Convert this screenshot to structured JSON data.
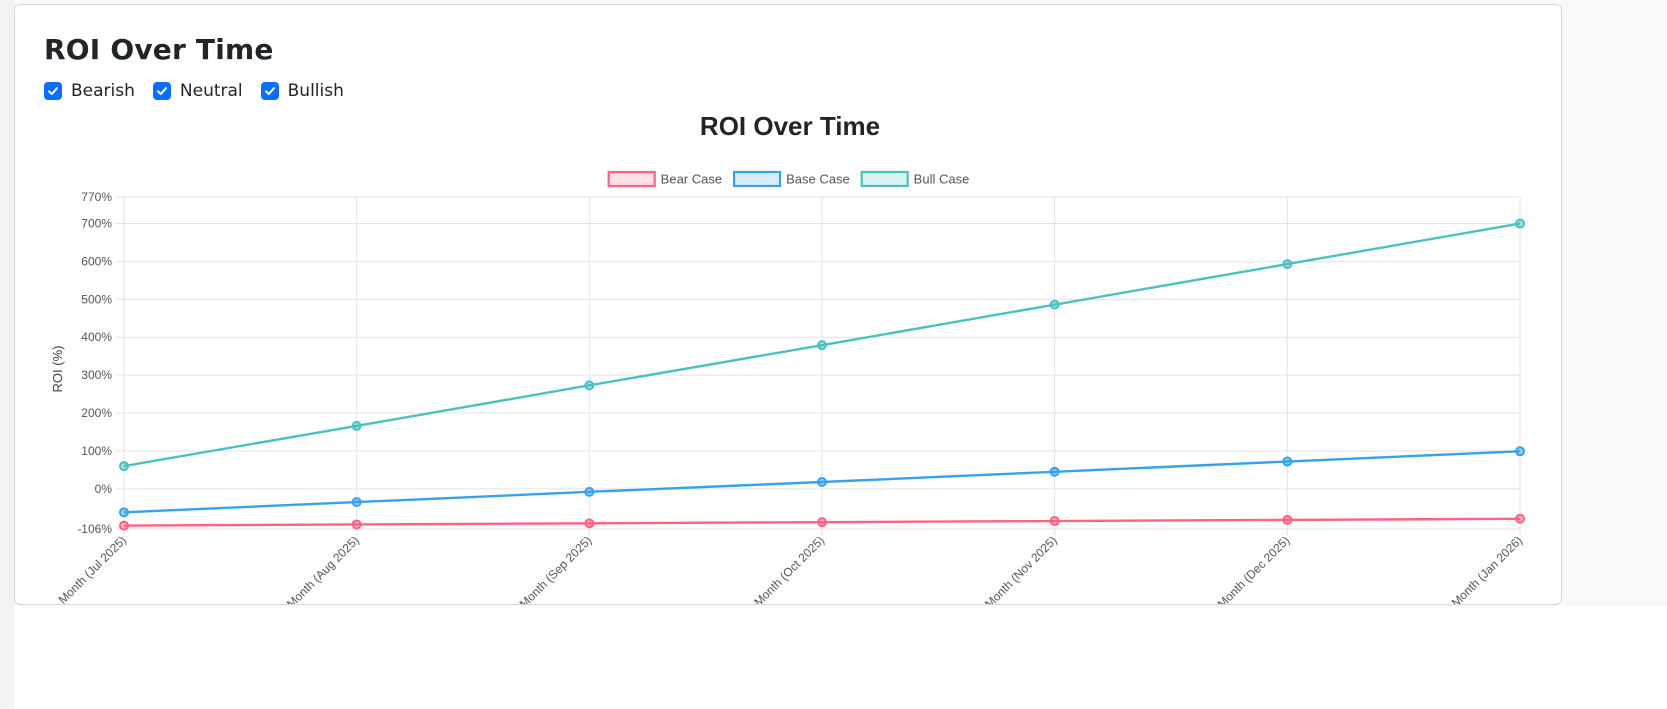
{
  "page": {
    "title": "ROI Over Time"
  },
  "filters": [
    {
      "label": "Bearish",
      "checked": true
    },
    {
      "label": "Neutral",
      "checked": true
    },
    {
      "label": "Bullish",
      "checked": true
    }
  ],
  "chart_data": {
    "type": "line",
    "title": "ROI Over Time",
    "xlabel": "",
    "ylabel": "ROI (%)",
    "ylim": [
      -106,
      770
    ],
    "yticks": [
      "770%",
      "700%",
      "600%",
      "500%",
      "400%",
      "300%",
      "200%",
      "100%",
      "0%",
      "-106%"
    ],
    "categories": [
      "Month (Jul 2025)",
      "Month (Aug 2025)",
      "Month (Sep 2025)",
      "Month (Oct 2025)",
      "Month (Nov 2025)",
      "Month (Dec 2025)",
      "Month (Jan 2026)"
    ],
    "series": [
      {
        "name": "Bear Case",
        "color": "#ff6384",
        "values": [
          -97,
          -94,
          -91,
          -88,
          -85,
          -82,
          -79
        ]
      },
      {
        "name": "Base Case",
        "color": "#36a2eb",
        "values": [
          -62,
          -35,
          -8,
          18,
          45,
          72,
          99
        ]
      },
      {
        "name": "Bull Case",
        "color": "#4bc0c0",
        "values": [
          60,
          166,
          273,
          379,
          486,
          593,
          700
        ]
      }
    ],
    "grid": true,
    "legend_position": "top"
  }
}
